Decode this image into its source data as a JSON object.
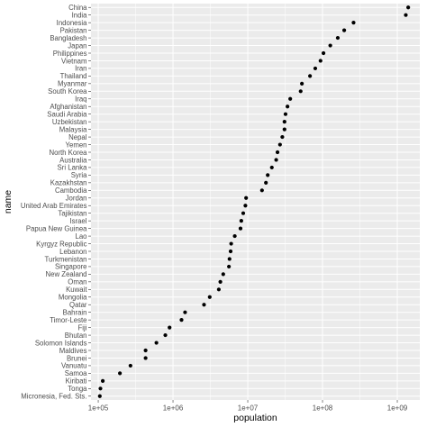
{
  "chart_data": {
    "type": "scatter",
    "xlabel": "population",
    "ylabel": "name",
    "x_scale": "log10",
    "xlim": [
      80000,
      2000000000
    ],
    "x_ticks": [
      {
        "value": 100000,
        "label": "1e+05"
      },
      {
        "value": 1000000,
        "label": "1e+06"
      },
      {
        "value": 10000000,
        "label": "1e+07"
      },
      {
        "value": 100000000,
        "label": "1e+08"
      },
      {
        "value": 1000000000,
        "label": "1e+09"
      }
    ],
    "grid": true,
    "legend": "none",
    "colors": {
      "panel": "#ebebeb",
      "grid": "#ffffff",
      "point": "#000000"
    },
    "points": [
      {
        "name": "China",
        "population": 1400000000
      },
      {
        "name": "India",
        "population": 1300000000
      },
      {
        "name": "Indonesia",
        "population": 260000000
      },
      {
        "name": "Pakistan",
        "population": 195000000
      },
      {
        "name": "Bangladesh",
        "population": 160000000
      },
      {
        "name": "Japan",
        "population": 127000000
      },
      {
        "name": "Philippines",
        "population": 103000000
      },
      {
        "name": "Vietnam",
        "population": 94000000
      },
      {
        "name": "Iran",
        "population": 80000000
      },
      {
        "name": "Thailand",
        "population": 68000000
      },
      {
        "name": "Myanmar",
        "population": 53000000
      },
      {
        "name": "South Korea",
        "population": 51000000
      },
      {
        "name": "Iraq",
        "population": 37000000
      },
      {
        "name": "Afghanistan",
        "population": 34000000
      },
      {
        "name": "Saudi Arabia",
        "population": 32000000
      },
      {
        "name": "Uzbekistan",
        "population": 31000000
      },
      {
        "name": "Malaysia",
        "population": 31000000
      },
      {
        "name": "Nepal",
        "population": 29000000
      },
      {
        "name": "Yemen",
        "population": 27000000
      },
      {
        "name": "North Korea",
        "population": 25000000
      },
      {
        "name": "Australia",
        "population": 24000000
      },
      {
        "name": "Sri Lanka",
        "population": 21000000
      },
      {
        "name": "Syria",
        "population": 18500000
      },
      {
        "name": "Kazakhstan",
        "population": 17500000
      },
      {
        "name": "Cambodia",
        "population": 15500000
      },
      {
        "name": "Jordan",
        "population": 9500000
      },
      {
        "name": "United Arab Emirates",
        "population": 9300000
      },
      {
        "name": "Tajikistan",
        "population": 8700000
      },
      {
        "name": "Israel",
        "population": 8200000
      },
      {
        "name": "Papua New Guinea",
        "population": 8000000
      },
      {
        "name": "Lao",
        "population": 6700000
      },
      {
        "name": "Kyrgyz Republic",
        "population": 6000000
      },
      {
        "name": "Lebanon",
        "population": 5900000
      },
      {
        "name": "Turkmenistan",
        "population": 5700000
      },
      {
        "name": "Singapore",
        "population": 5600000
      },
      {
        "name": "New Zealand",
        "population": 4700000
      },
      {
        "name": "Oman",
        "population": 4300000
      },
      {
        "name": "Kuwait",
        "population": 4100000
      },
      {
        "name": "Mongolia",
        "population": 3100000
      },
      {
        "name": "Qatar",
        "population": 2600000
      },
      {
        "name": "Bahrain",
        "population": 1450000
      },
      {
        "name": "Timor-Leste",
        "population": 1300000
      },
      {
        "name": "Fiji",
        "population": 900000
      },
      {
        "name": "Bhutan",
        "population": 790000
      },
      {
        "name": "Solomon Islands",
        "population": 600000
      },
      {
        "name": "Maldives",
        "population": 430000
      },
      {
        "name": "Brunei",
        "population": 430000
      },
      {
        "name": "Vanuatu",
        "population": 270000
      },
      {
        "name": "Samoa",
        "population": 195000
      },
      {
        "name": "Kiribati",
        "population": 115000
      },
      {
        "name": "Tonga",
        "population": 107000
      },
      {
        "name": "Micronesia, Fed. Sts.",
        "population": 105000
      }
    ]
  }
}
